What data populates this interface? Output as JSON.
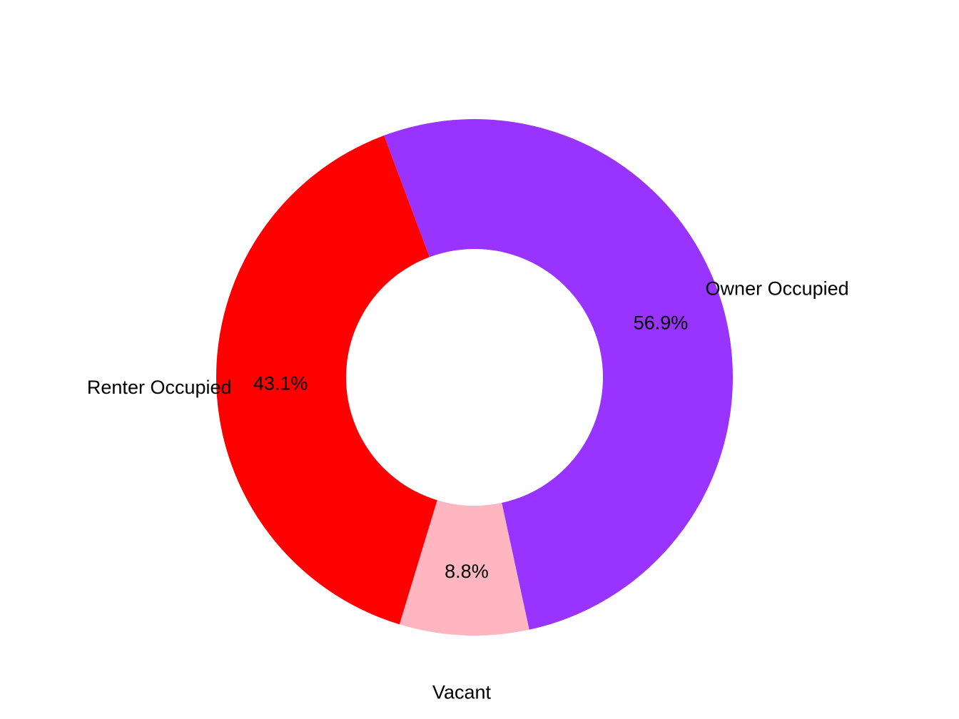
{
  "chart_data": {
    "type": "pie",
    "style": "donut",
    "title": "",
    "slices": [
      {
        "label": "Owner Occupied",
        "value": 56.9,
        "value_label": "56.9%",
        "color": "#9933FF"
      },
      {
        "label": "Vacant",
        "value": 8.8,
        "value_label": "8.8%",
        "color": "#FFB6C1"
      },
      {
        "label": "Renter Occupied",
        "value": 43.1,
        "value_label": "43.1%",
        "color": "#FF0000"
      }
    ],
    "legend": "none",
    "background": "#FFFFFF"
  }
}
